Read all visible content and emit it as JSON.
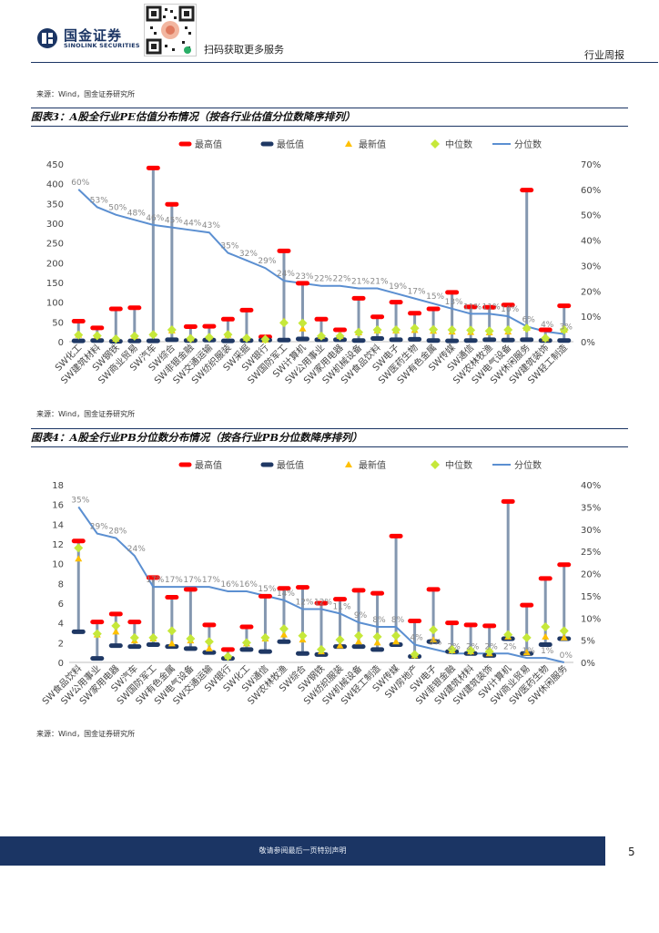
{
  "header": {
    "company_cn": "国金证券",
    "company_en": "SINOLINK SECURITIES",
    "qr_caption": "扫码获取更多服务",
    "report_type": "行业周报"
  },
  "source_top": "来源：Wind，国金证券研究所",
  "figure3": {
    "title": "图表3：A股全行业PE估值分布情况（按各行业估值分位数降序排列）",
    "source": "来源：Wind，国金证券研究所"
  },
  "figure4": {
    "title": "图表4：A股全行业PB分位数分布情况（按各行业PB分位数降序排列）",
    "source": "来源：Wind，国金证券研究所"
  },
  "footer": {
    "disclaimer": "敬请参阅最后一页特别声明",
    "page": "5"
  },
  "colors": {
    "brand": "#1b3564",
    "max": "#ff0000",
    "min": "#1f3864",
    "latest": "#ffc000",
    "median": "#c6e83a",
    "percentile": "#5b8fd1",
    "stem": "#8497b0"
  },
  "chart_data": [
    {
      "type": "range-line",
      "legend": [
        "最高值",
        "最低值",
        "最新值",
        "中位数",
        "分位数"
      ],
      "ylim_left": [
        0,
        450
      ],
      "yticks_left": [
        0,
        50,
        100,
        150,
        200,
        250,
        300,
        350,
        400,
        450
      ],
      "ylim_right": [
        0,
        70
      ],
      "yticks_right": [
        "0%",
        "10%",
        "20%",
        "30%",
        "40%",
        "50%",
        "60%",
        "70%"
      ],
      "categories": [
        "SW化工",
        "SW建筑材料",
        "SW钢铁",
        "SW商业贸易",
        "SW汽车",
        "SW综合",
        "SW非银金融",
        "SW交通运输",
        "SW纺织服装",
        "SW采掘",
        "SW银行",
        "SW国防军工",
        "SW计算机",
        "SW公用事业",
        "SW家用电器",
        "SW机械设备",
        "SW食品饮料",
        "SW电子",
        "SW医药生物",
        "SW有色金属",
        "SW传媒",
        "SW通信",
        "SW农林牧渔",
        "SW电气设备",
        "SW休闲服务",
        "SW建筑装饰",
        "SW轻工制造"
      ],
      "max": [
        52,
        35,
        83,
        86,
        440,
        348,
        38,
        39,
        57,
        80,
        12,
        230,
        148,
        57,
        30,
        110,
        63,
        100,
        72,
        83,
        125,
        88,
        87,
        93,
        384,
        30,
        91
      ],
      "min": [
        2,
        3,
        1,
        2,
        2,
        5,
        3,
        4,
        2,
        3,
        4,
        4,
        7,
        5,
        5,
        3,
        8,
        5,
        6,
        3,
        2,
        3,
        5,
        4,
        5,
        3,
        3
      ],
      "latest": [
        17,
        15,
        7,
        14,
        20,
        28,
        8,
        13,
        17,
        9,
        5,
        52,
        33,
        14,
        14,
        23,
        28,
        28,
        29,
        27,
        25,
        24,
        23,
        25,
        35,
        8,
        30
      ],
      "median": [
        17,
        15,
        7,
        14,
        18,
        30,
        8,
        11,
        18,
        9,
        6,
        48,
        47,
        14,
        14,
        24,
        30,
        30,
        34,
        31,
        30,
        29,
        27,
        30,
        34,
        9,
        30
      ],
      "percentile": [
        60,
        53,
        50,
        48,
        46,
        45,
        44,
        43,
        35,
        32,
        29,
        24,
        23,
        22,
        22,
        21,
        21,
        19,
        17,
        15,
        13,
        11,
        11,
        10,
        6,
        4,
        3
      ],
      "percentile_labels": [
        "60%",
        "53%",
        "50%",
        "48%",
        "46%",
        "45%",
        "44%",
        "43%",
        "35%",
        "32%",
        "29%",
        "24%",
        "23%",
        "22%",
        "22%",
        "21%",
        "21%",
        "19%",
        "17%",
        "15%",
        "13%",
        "11%",
        "11%",
        "10%",
        "6%",
        "4%",
        "3%"
      ]
    },
    {
      "type": "range-line",
      "legend": [
        "最高值",
        "最低值",
        "最新值",
        "中位数",
        "分位数"
      ],
      "ylim_left": [
        0,
        18
      ],
      "yticks_left": [
        0,
        2,
        4,
        6,
        8,
        10,
        12,
        14,
        16,
        18
      ],
      "ylim_right": [
        0,
        40
      ],
      "yticks_right": [
        "0%",
        "5%",
        "10%",
        "15%",
        "20%",
        "25%",
        "30%",
        "35%",
        "40%"
      ],
      "categories": [
        "SW食品饮料",
        "SW公用事业",
        "SW家用电器",
        "SW汽车",
        "SW国防军工",
        "SW有色金属",
        "SW电气设备",
        "SW交通运输",
        "SW银行",
        "SW化工",
        "SW通信",
        "SW农林牧渔",
        "SW综合",
        "SW钢铁",
        "SW纺织服装",
        "SW机械设备",
        "SW轻工制造",
        "SW传媒",
        "SW房地产",
        "SW电子",
        "SW非银金融",
        "SW建筑材料",
        "SW建筑装饰",
        "SW计算机",
        "SW商业贸易",
        "SW医药生物",
        "SW休闲服务"
      ],
      "max": [
        12.3,
        4.1,
        4.9,
        4.1,
        8.6,
        6.6,
        7.4,
        3.8,
        1.3,
        3.6,
        6.7,
        7.5,
        7.6,
        6.0,
        6.4,
        7.3,
        7.0,
        12.8,
        4.2,
        7.4,
        4.0,
        3.8,
        3.7,
        16.3,
        5.8,
        8.5,
        9.9
      ],
      "min": [
        3.1,
        0.4,
        1.7,
        1.6,
        1.8,
        1.6,
        1.4,
        1.0,
        0.4,
        1.3,
        1.1,
        2.1,
        0.9,
        0.8,
        1.6,
        1.6,
        1.3,
        1.8,
        0.6,
        2.1,
        1.1,
        0.9,
        0.7,
        2.4,
        0.9,
        1.8,
        2.4
      ],
      "latest": [
        10.5,
        2.8,
        3.1,
        2.2,
        2.4,
        1.9,
        2.2,
        1.4,
        0.6,
        1.9,
        2.4,
        2.8,
        2.3,
        1.1,
        1.7,
        2.1,
        2.0,
        2.1,
        0.7,
        2.3,
        1.2,
        1.1,
        0.9,
        2.6,
        1.0,
        2.6,
        2.5
      ],
      "median": [
        11.6,
        2.9,
        3.7,
        2.5,
        2.5,
        3.2,
        2.4,
        2.1,
        0.6,
        2.0,
        2.5,
        3.4,
        2.7,
        1.3,
        2.3,
        2.7,
        2.6,
        2.7,
        0.8,
        3.3,
        1.3,
        1.2,
        1.1,
        2.8,
        2.5,
        3.6,
        3.2
      ],
      "percentile": [
        35,
        29,
        28,
        24,
        17,
        17,
        17,
        17,
        16,
        16,
        15,
        14,
        12,
        12,
        11,
        9,
        8,
        8,
        4,
        3,
        2,
        2,
        2,
        2,
        1,
        1,
        0
      ],
      "percentile_labels": [
        "35%",
        "29%",
        "28%",
        "24%",
        "17%",
        "17%",
        "17%",
        "17%",
        "16%",
        "16%",
        "15%",
        "14%",
        "12%",
        "12%",
        "11%",
        "9%",
        "8%",
        "8%",
        "4%",
        "3%",
        "2%",
        "2%",
        "2%",
        "2%",
        "1%",
        "1%",
        "0%"
      ]
    }
  ]
}
